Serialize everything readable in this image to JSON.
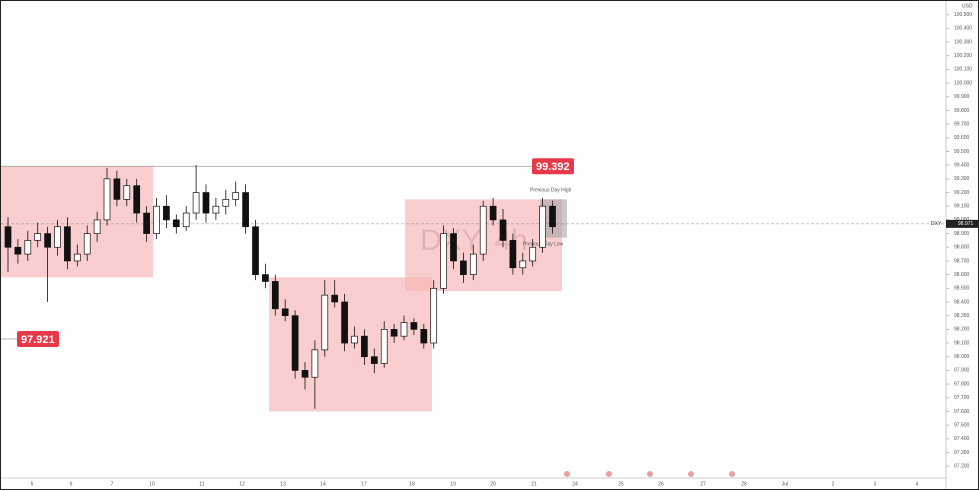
{
  "chart_data": {
    "type": "candlestick",
    "watermark": "DXY, 4h",
    "currency": "USD",
    "symbol": "DXY",
    "ylim": [
      97.15,
      100.6
    ],
    "yticks": [
      {
        "value": 97.2,
        "label": "97.200"
      },
      {
        "value": 97.3,
        "label": "97.300"
      },
      {
        "value": 97.4,
        "label": "97.400"
      },
      {
        "value": 97.5,
        "label": "97.500"
      },
      {
        "value": 97.6,
        "label": "97.600"
      },
      {
        "value": 97.7,
        "label": "97.700"
      },
      {
        "value": 97.8,
        "label": "97.800"
      },
      {
        "value": 97.9,
        "label": "97.900"
      },
      {
        "value": 98,
        "label": "98.000"
      },
      {
        "value": 98.1,
        "label": "98.100"
      },
      {
        "value": 98.2,
        "label": "98.200"
      },
      {
        "value": 98.3,
        "label": "98.300"
      },
      {
        "value": 98.4,
        "label": "98.400"
      },
      {
        "value": 98.5,
        "label": "98.500"
      },
      {
        "value": 98.6,
        "label": "98.600"
      },
      {
        "value": 98.7,
        "label": "98.700"
      },
      {
        "value": 98.8,
        "label": "98.800"
      },
      {
        "value": 98.9,
        "label": "98.900"
      },
      {
        "value": 99,
        "label": "99.000"
      },
      {
        "value": 99.1,
        "label": "99.100"
      },
      {
        "value": 99.2,
        "label": "99.200"
      },
      {
        "value": 99.3,
        "label": "99.300"
      },
      {
        "value": 99.4,
        "label": "99.400"
      },
      {
        "value": 99.5,
        "label": "99.500"
      },
      {
        "value": 99.6,
        "label": "99.600"
      },
      {
        "value": 99.7,
        "label": "99.700"
      },
      {
        "value": 99.8,
        "label": "99.800"
      },
      {
        "value": 99.9,
        "label": "99.900"
      },
      {
        "value": 100,
        "label": "100.000"
      },
      {
        "value": 100.1,
        "label": "100.100"
      },
      {
        "value": 100.2,
        "label": "100.200"
      },
      {
        "value": 100.3,
        "label": "100.300"
      },
      {
        "value": 100.4,
        "label": "100.400"
      },
      {
        "value": 100.5,
        "label": "100.500"
      }
    ],
    "categories": [
      "5",
      "6",
      "7",
      "10",
      "11",
      "12",
      "13",
      "14",
      "17",
      "18",
      "19",
      "20",
      "21",
      "24",
      "25",
      "26",
      "27",
      "28",
      "Jul",
      "2",
      "3",
      "4"
    ],
    "open": [
      98.95,
      98.8,
      98.75,
      98.85,
      98.9,
      98.8,
      98.95,
      98.7,
      98.75,
      98.9,
      99.0,
      99.3,
      99.15,
      99.25,
      99.05,
      98.9,
      99.1,
      99.0,
      98.95,
      99.05,
      99.2,
      99.05,
      99.1,
      99.15,
      99.2,
      98.95,
      98.6,
      98.55,
      98.35,
      98.3,
      97.9,
      97.85,
      98.05,
      98.45,
      98.4,
      98.1,
      98.15,
      98.0,
      97.95,
      98.2,
      98.15,
      98.25,
      98.2,
      98.1,
      98.5,
      98.9,
      98.7,
      98.6,
      98.75,
      99.1,
      99.0,
      98.85,
      98.65,
      98.7,
      98.8,
      99.1
    ],
    "high": [
      99.02,
      98.86,
      98.92,
      98.98,
      98.95,
      99.0,
      99.02,
      98.82,
      98.96,
      99.06,
      99.38,
      99.36,
      99.3,
      99.3,
      99.1,
      99.16,
      99.18,
      99.04,
      99.1,
      99.4,
      99.26,
      99.16,
      99.22,
      99.28,
      99.26,
      99.0,
      98.68,
      98.6,
      98.42,
      98.34,
      97.96,
      98.12,
      98.56,
      98.56,
      98.46,
      98.22,
      98.2,
      98.06,
      98.26,
      98.24,
      98.3,
      98.28,
      98.24,
      98.56,
      98.96,
      98.94,
      98.76,
      98.82,
      99.14,
      99.16,
      99.08,
      98.9,
      98.76,
      98.86,
      99.16,
      99.14
    ],
    "low": [
      98.62,
      98.68,
      98.7,
      98.8,
      98.4,
      98.74,
      98.64,
      98.66,
      98.7,
      98.84,
      98.96,
      99.1,
      99.1,
      98.98,
      98.84,
      98.86,
      98.94,
      98.9,
      98.92,
      99.0,
      98.98,
      99.0,
      99.04,
      99.1,
      98.9,
      98.56,
      98.5,
      98.3,
      98.26,
      97.84,
      97.76,
      97.62,
      98.0,
      98.36,
      98.04,
      98.06,
      97.94,
      97.88,
      97.92,
      98.1,
      98.12,
      98.16,
      98.06,
      98.06,
      98.46,
      98.64,
      98.54,
      98.56,
      98.7,
      98.96,
      98.8,
      98.6,
      98.6,
      98.66,
      98.76,
      98.9
    ],
    "close": [
      98.8,
      98.75,
      98.85,
      98.9,
      98.8,
      98.95,
      98.7,
      98.75,
      98.9,
      99.0,
      99.3,
      99.15,
      99.25,
      99.05,
      98.9,
      99.1,
      99.0,
      98.95,
      99.05,
      99.2,
      99.05,
      99.1,
      99.15,
      99.2,
      98.95,
      98.6,
      98.55,
      98.35,
      98.3,
      97.9,
      97.85,
      98.05,
      98.45,
      98.4,
      98.1,
      98.15,
      98.0,
      97.95,
      98.2,
      98.15,
      98.25,
      98.2,
      98.1,
      98.5,
      98.9,
      98.7,
      98.6,
      98.75,
      99.1,
      99.0,
      98.85,
      98.65,
      98.7,
      98.8,
      99.1,
      98.95
    ],
    "zones": [
      {
        "high": 99.39,
        "low": 98.58,
        "color": "#f8b4b4"
      },
      {
        "high": 98.58,
        "low": 97.6,
        "color": "#f8b4b4"
      },
      {
        "high": 99.15,
        "low": 98.48,
        "color": "#f8b4b4"
      },
      {
        "high": 99.15,
        "low": 98.87,
        "color": "#9e9e9e"
      }
    ],
    "levels": [
      {
        "value": 99.392,
        "color": "#e8394b"
      },
      {
        "value": 97.921,
        "color": "#e8394b"
      }
    ],
    "last_price": 98.971,
    "annotations": [
      "Previous Day High",
      "Previous Day Low"
    ]
  }
}
